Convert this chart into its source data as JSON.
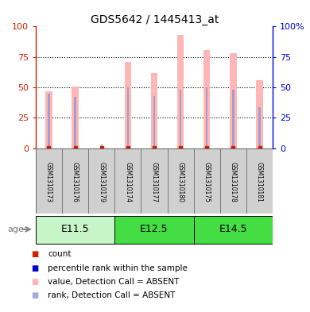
{
  "title": "GDS5642 / 1445413_at",
  "samples": [
    "GSM1310173",
    "GSM1310176",
    "GSM1310179",
    "GSM1310174",
    "GSM1310177",
    "GSM1310180",
    "GSM1310175",
    "GSM1310178",
    "GSM1310181"
  ],
  "pink_bars": [
    47,
    51,
    0,
    71,
    62,
    93,
    81,
    78,
    56
  ],
  "blue_bars": [
    45,
    42,
    3,
    50,
    43,
    48,
    50,
    48,
    34
  ],
  "age_groups": [
    {
      "label": "E11.5",
      "start": 0,
      "end": 3,
      "color_light": "#c8f5c8",
      "color_dark": "#50d050"
    },
    {
      "label": "E12.5",
      "start": 3,
      "end": 6,
      "color_light": "#50d050",
      "color_dark": "#50d050"
    },
    {
      "label": "E14.5",
      "start": 6,
      "end": 9,
      "color_light": "#50d050",
      "color_dark": "#50d050"
    }
  ],
  "ylim": [
    0,
    100
  ],
  "yticks": [
    0,
    25,
    50,
    75,
    100
  ],
  "left_axis_color": "#CC2200",
  "right_axis_color": "#0000CC",
  "pink_bar_color": "#FFB6B6",
  "blue_bar_color": "#9999CC",
  "sample_box_color": "#d0d0d0",
  "legend_items": [
    {
      "label": "count",
      "color": "#CC2200"
    },
    {
      "label": "percentile rank within the sample",
      "color": "#0000CC"
    },
    {
      "label": "value, Detection Call = ABSENT",
      "color": "#FFB6B6"
    },
    {
      "label": "rank, Detection Call = ABSENT",
      "color": "#AAAADD"
    }
  ]
}
